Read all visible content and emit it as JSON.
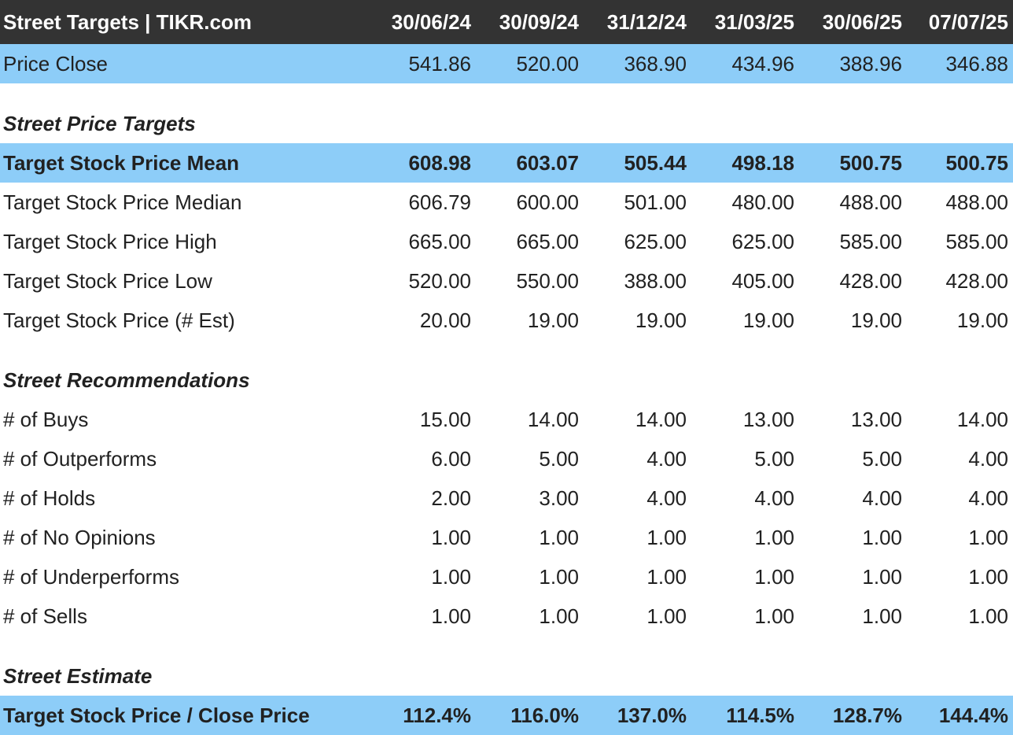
{
  "header": {
    "title": "Street Targets | TIKR.com",
    "dates": [
      "30/06/24",
      "30/09/24",
      "31/12/24",
      "31/03/25",
      "30/06/25",
      "07/07/25"
    ]
  },
  "price_close": {
    "label": "Price Close",
    "values": [
      "541.86",
      "520.00",
      "368.90",
      "434.96",
      "388.96",
      "346.88"
    ]
  },
  "targets": {
    "title": "Street Price Targets",
    "rows": [
      {
        "label": "Target Stock Price Mean",
        "values": [
          "608.98",
          "603.07",
          "505.44",
          "498.18",
          "500.75",
          "500.75"
        ]
      },
      {
        "label": "Target Stock Price Median",
        "values": [
          "606.79",
          "600.00",
          "501.00",
          "480.00",
          "488.00",
          "488.00"
        ]
      },
      {
        "label": "Target Stock Price High",
        "values": [
          "665.00",
          "665.00",
          "625.00",
          "625.00",
          "585.00",
          "585.00"
        ]
      },
      {
        "label": "Target Stock Price Low",
        "values": [
          "520.00",
          "550.00",
          "388.00",
          "405.00",
          "428.00",
          "428.00"
        ]
      },
      {
        "label": "Target Stock Price (# Est)",
        "values": [
          "20.00",
          "19.00",
          "19.00",
          "19.00",
          "19.00",
          "19.00"
        ]
      }
    ]
  },
  "recommendations": {
    "title": "Street Recommendations",
    "rows": [
      {
        "label": "# of Buys",
        "values": [
          "15.00",
          "14.00",
          "14.00",
          "13.00",
          "13.00",
          "14.00"
        ]
      },
      {
        "label": "# of Outperforms",
        "values": [
          "6.00",
          "5.00",
          "4.00",
          "5.00",
          "5.00",
          "4.00"
        ]
      },
      {
        "label": "# of Holds",
        "values": [
          "2.00",
          "3.00",
          "4.00",
          "4.00",
          "4.00",
          "4.00"
        ]
      },
      {
        "label": "# of No Opinions",
        "values": [
          "1.00",
          "1.00",
          "1.00",
          "1.00",
          "1.00",
          "1.00"
        ]
      },
      {
        "label": "# of Underperforms",
        "values": [
          "1.00",
          "1.00",
          "1.00",
          "1.00",
          "1.00",
          "1.00"
        ]
      },
      {
        "label": "# of Sells",
        "values": [
          "1.00",
          "1.00",
          "1.00",
          "1.00",
          "1.00",
          "1.00"
        ]
      }
    ]
  },
  "estimate": {
    "title": "Street Estimate",
    "rows": [
      {
        "label": "Target Stock Price / Close Price",
        "values": [
          "112.4%",
          "116.0%",
          "137.0%",
          "114.5%",
          "128.7%",
          "144.4%"
        ]
      }
    ]
  },
  "colors": {
    "header_bg": "#333333",
    "highlight_bg": "#8dcdf8"
  }
}
